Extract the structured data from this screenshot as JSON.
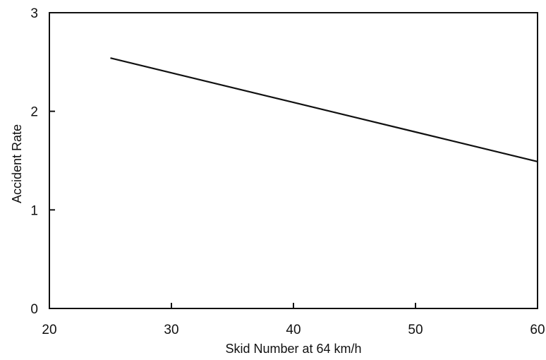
{
  "chart_data": {
    "type": "line",
    "title": "",
    "xlabel": "Skid Number at 64 km/h",
    "ylabel": "Accident Rate",
    "xlim": [
      20,
      60
    ],
    "ylim": [
      0,
      3
    ],
    "xticks": [
      20,
      30,
      40,
      50,
      60
    ],
    "yticks": [
      0,
      1,
      2,
      3
    ],
    "xtick_labels": [
      "20",
      "30",
      "40",
      "50",
      "60"
    ],
    "ytick_labels": [
      "0",
      "1",
      "2",
      "3"
    ],
    "grid": false,
    "legend": "none",
    "series": [
      {
        "x": [
          25,
          30,
          40,
          50,
          60
        ],
        "y": [
          2.54,
          2.39,
          2.09,
          1.79,
          1.49
        ]
      }
    ],
    "colors": {
      "line": "#111111",
      "background": "#ffffff"
    }
  }
}
